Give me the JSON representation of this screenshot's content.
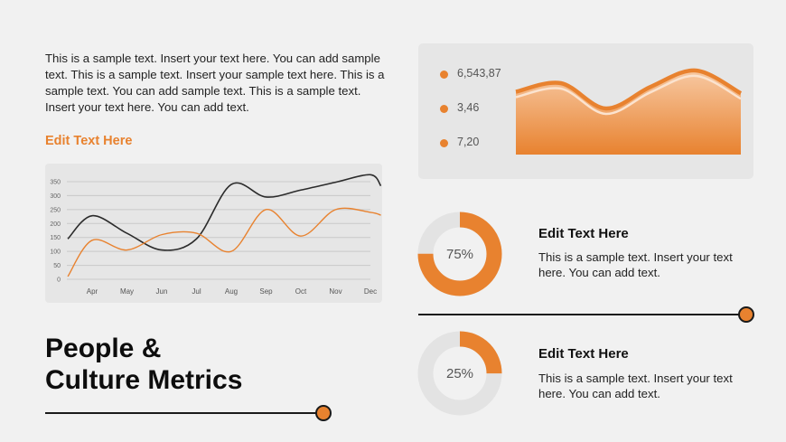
{
  "intro": {
    "text": "This is a sample text. Insert your text here. You can add sample text. This is a sample text. Insert your sample text here. This is a sample text. You can add sample text. This is a sample text. Insert your text here. You can add text."
  },
  "subheading": "Edit Text Here",
  "slide_title": {
    "line1": "People &",
    "line2": "Culture Metrics"
  },
  "legend": {
    "items": [
      {
        "value": "6,543,87"
      },
      {
        "value": "3,46"
      },
      {
        "value": "7,20"
      }
    ]
  },
  "cards": [
    {
      "title": "Edit Text Here",
      "body": "This is a sample text. Insert your text here. You can add text."
    },
    {
      "title": "Edit Text Here",
      "body": "This is a sample text. Insert your text here. You can add text."
    }
  ],
  "colors": {
    "accent": "#e8822f",
    "dark": "#1a1a1a",
    "panel": "#e6e6e6"
  },
  "chart_data": [
    {
      "type": "line",
      "categories": [
        "Apr",
        "May",
        "Jun",
        "Jul",
        "Aug",
        "Sep",
        "Oct",
        "Nov",
        "Dec"
      ],
      "y_ticks": [
        0,
        50,
        100,
        150,
        200,
        250,
        300,
        350
      ],
      "ylim": [
        0,
        350
      ],
      "grid": true,
      "series": [
        {
          "color": "#2b2b2b",
          "x": [
            -0.7,
            0,
            1,
            2,
            3,
            4,
            5,
            6,
            7,
            8,
            8.3
          ],
          "values": [
            145,
            228,
            165,
            105,
            145,
            340,
            295,
            320,
            348,
            375,
            335
          ]
        },
        {
          "color": "#e8822f",
          "x": [
            -0.7,
            0,
            1,
            2,
            3,
            4,
            5,
            6,
            7,
            8,
            8.3
          ],
          "values": [
            10,
            140,
            105,
            160,
            165,
            100,
            250,
            155,
            250,
            240,
            230
          ]
        }
      ]
    },
    {
      "type": "area",
      "values": [
        0.58,
        0.75,
        0.25,
        0.68,
        1.0,
        0.55
      ],
      "color": "#e8822f"
    },
    {
      "type": "pie",
      "values": [
        75,
        25
      ],
      "label": "75%",
      "color": "#e8822f"
    },
    {
      "type": "pie",
      "values": [
        25,
        75
      ],
      "label": "25%",
      "color": "#e8822f"
    }
  ]
}
